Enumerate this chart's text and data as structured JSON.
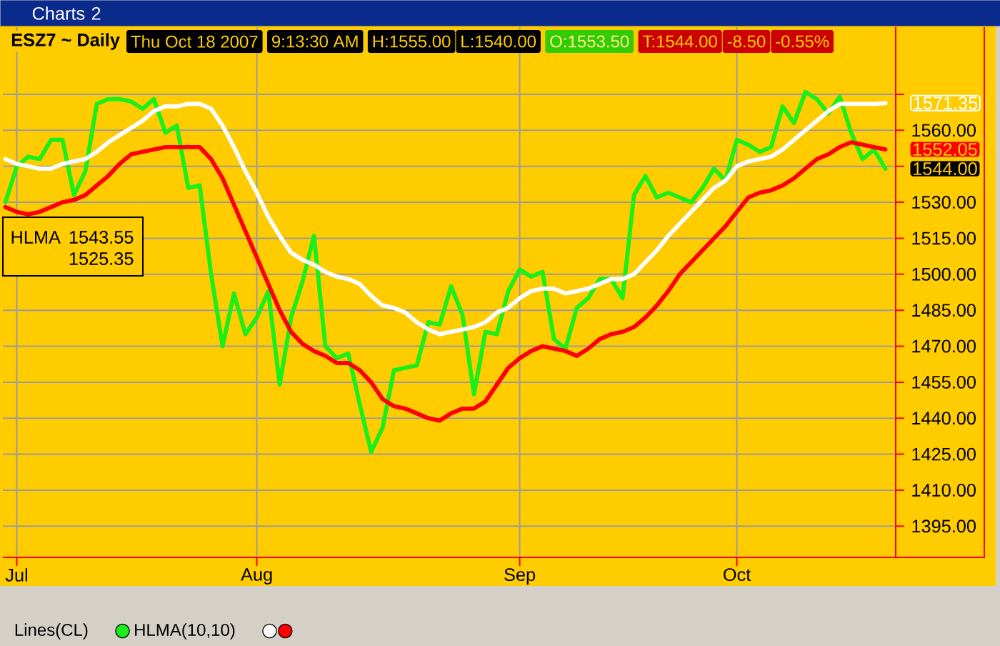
{
  "chart_data": {
    "type": "line",
    "title": "ESZ7 ~ Daily",
    "annotations": [
      "Charts 2",
      "Thu Oct 18 2007",
      "9:13:30 AM",
      "H:1555.00",
      "L:1540.00",
      "O:1553.50",
      "T:1544.00",
      "-8.50",
      "-0.55%",
      "HLMA",
      "1543.55",
      "1525.35"
    ],
    "categories": [
      null,
      "Jul",
      null,
      null,
      null,
      null,
      null,
      null,
      null,
      null,
      null,
      null,
      null,
      null,
      null,
      null,
      null,
      null,
      null,
      null,
      null,
      null,
      "Aug",
      null,
      null,
      null,
      null,
      null,
      null,
      null,
      null,
      null,
      null,
      null,
      null,
      null,
      null,
      null,
      null,
      null,
      null,
      null,
      null,
      null,
      null,
      "Sep",
      null,
      null,
      null,
      null,
      null,
      null,
      null,
      null,
      null,
      null,
      null,
      null,
      null,
      null,
      null,
      null,
      null,
      null,
      "Oct",
      null,
      null,
      null,
      null,
      null,
      null,
      null,
      null,
      null,
      null,
      null,
      null,
      null
    ],
    "series": [
      {
        "name": "Lines(CL)",
        "color": "#1aef1a",
        "values": [
          1530,
          1545,
          1549,
          1548,
          1556,
          1556,
          1533,
          1543,
          1571,
          1573,
          1573,
          1572,
          1569,
          1573,
          1559,
          1562,
          1536,
          1537,
          1500,
          1470,
          1492,
          1475,
          1482,
          1493,
          1454,
          1482,
          1497,
          1516,
          1470,
          1465,
          1467,
          1446,
          1426,
          1436,
          1460,
          1461,
          1462,
          1480,
          1479,
          1495,
          1483,
          1450,
          1476,
          1475,
          1493,
          1502,
          1499,
          1501,
          1473,
          1469,
          1486,
          1490,
          1498,
          1498,
          1490,
          1533,
          1541,
          1532,
          1534,
          1532,
          1530,
          1536,
          1544,
          1539,
          1556,
          1554,
          1551,
          1553,
          1570,
          1563,
          1576,
          1573,
          1567,
          1574,
          1559,
          1548,
          1552,
          1544.0
        ],
        "value_labels": [
          null,
          null,
          null,
          null,
          null,
          null,
          null,
          null,
          null,
          null,
          null,
          null,
          null,
          null,
          null,
          null,
          null,
          null,
          null,
          null,
          null,
          null,
          null,
          null,
          null,
          null,
          null,
          null,
          null,
          null,
          null,
          null,
          null,
          null,
          null,
          null,
          null,
          null,
          null,
          null,
          null,
          null,
          null,
          null,
          null,
          null,
          null,
          null,
          null,
          null,
          null,
          null,
          null,
          null,
          null,
          null,
          null,
          null,
          null,
          null,
          null,
          null,
          null,
          null,
          null,
          null,
          null,
          null,
          null,
          null,
          null,
          null,
          null,
          null,
          null,
          null,
          null,
          "1544.00"
        ]
      },
      {
        "name": "HLMA(10,10)",
        "color": "#ffffff",
        "values": [
          1548,
          1546,
          1545,
          1544,
          1544,
          1546,
          1547,
          1548,
          1551,
          1555,
          1558,
          1561,
          1564,
          1568,
          1570,
          1570,
          1571,
          1571,
          1569,
          1562,
          1553,
          1543,
          1534,
          1524,
          1516,
          1509,
          1506,
          1504,
          1501,
          1499,
          1498,
          1496,
          1491,
          1487,
          1486,
          1484,
          1480,
          1477,
          1475,
          1476,
          1477,
          1478,
          1480,
          1484,
          1486,
          1490,
          1493,
          1494,
          1494,
          1492,
          1493,
          1494,
          1496,
          1498,
          1498,
          1500,
          1505,
          1510,
          1516,
          1521,
          1526,
          1531,
          1536,
          1539,
          1545,
          1547,
          1548,
          1549,
          1552,
          1556,
          1560,
          1564,
          1568,
          1571,
          1571,
          1571,
          1571,
          1571.35
        ],
        "value_labels": [
          null,
          null,
          null,
          null,
          null,
          null,
          null,
          null,
          null,
          null,
          null,
          null,
          null,
          null,
          null,
          null,
          null,
          null,
          null,
          null,
          null,
          null,
          null,
          null,
          null,
          null,
          null,
          null,
          null,
          null,
          null,
          null,
          null,
          null,
          null,
          null,
          null,
          null,
          null,
          null,
          null,
          null,
          null,
          null,
          null,
          null,
          null,
          null,
          null,
          null,
          null,
          null,
          null,
          null,
          null,
          null,
          null,
          null,
          null,
          null,
          null,
          null,
          null,
          null,
          null,
          null,
          null,
          null,
          null,
          null,
          null,
          null,
          null,
          null,
          null,
          null,
          null,
          "1571.35"
        ]
      },
      {
        "color": "#ff0000",
        "values": [
          1528,
          1526,
          1525,
          1526,
          1528,
          1530,
          1531,
          1533,
          1537,
          1541,
          1546,
          1550,
          1551,
          1552,
          1553,
          1553,
          1553,
          1553,
          1548,
          1540,
          1529,
          1518,
          1507,
          1496,
          1485,
          1476,
          1471,
          1468,
          1466,
          1463,
          1463,
          1460,
          1455,
          1448,
          1445,
          1444,
          1442,
          1440,
          1439,
          1442,
          1444,
          1444,
          1447,
          1454,
          1461,
          1465,
          1468,
          1470,
          1469,
          1468,
          1466,
          1469,
          1473,
          1475,
          1476,
          1478,
          1482,
          1487,
          1493,
          1500,
          1505,
          1510,
          1515,
          1520,
          1526,
          1532,
          1534,
          1535,
          1537,
          1540,
          1544,
          1548,
          1550,
          1553,
          1555,
          1554,
          1553,
          1552.05
        ],
        "value_labels": [
          null,
          null,
          null,
          null,
          null,
          null,
          null,
          null,
          null,
          null,
          null,
          null,
          null,
          null,
          null,
          null,
          null,
          null,
          null,
          null,
          null,
          null,
          null,
          null,
          null,
          null,
          null,
          null,
          null,
          null,
          null,
          null,
          null,
          null,
          null,
          null,
          null,
          null,
          null,
          null,
          null,
          null,
          null,
          null,
          null,
          null,
          null,
          null,
          null,
          null,
          null,
          null,
          null,
          null,
          null,
          null,
          null,
          null,
          null,
          null,
          null,
          null,
          null,
          null,
          null,
          null,
          null,
          null,
          null,
          null,
          null,
          null,
          null,
          null,
          null,
          null,
          null,
          "1552.05"
        ]
      }
    ],
    "ylim": [
      1382,
      1603
    ],
    "yticks": [
      {
        "value": 1395,
        "label": "1395.00"
      },
      {
        "value": 1410,
        "label": "1410.00"
      },
      {
        "value": 1425,
        "label": "1425.00"
      },
      {
        "value": 1440,
        "label": "1440.00"
      },
      {
        "value": 1455,
        "label": "1455.00"
      },
      {
        "value": 1470,
        "label": "1470.00"
      },
      {
        "value": 1485,
        "label": "1485.00"
      },
      {
        "value": 1500,
        "label": "1500.00"
      },
      {
        "value": 1515,
        "label": "1515.00"
      },
      {
        "value": 1530,
        "label": "1530.00"
      },
      {
        "value": 1545,
        "label": null
      },
      {
        "value": 1560,
        "label": "1560.00"
      },
      {
        "value": 1575,
        "label": null
      }
    ],
    "grid": true,
    "legend": "bottom",
    "line_style": "solid"
  }
}
